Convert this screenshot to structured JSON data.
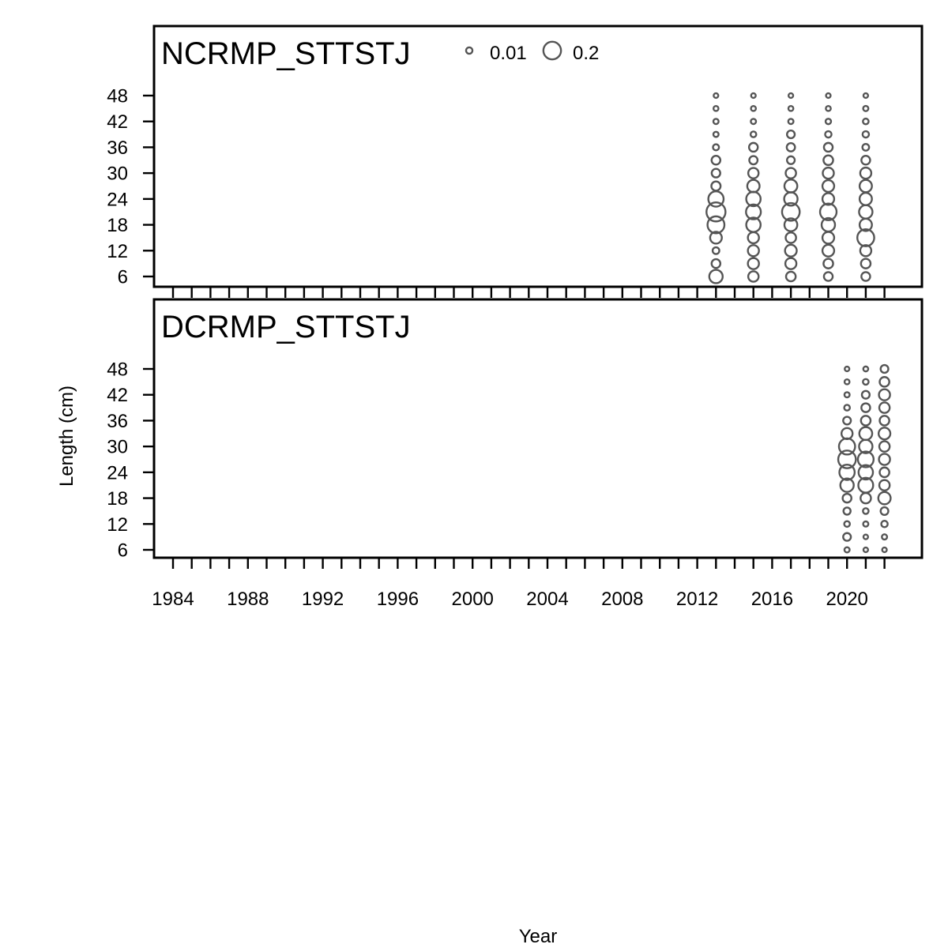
{
  "chart_data": {
    "type": "scatter",
    "subtype": "bubble",
    "xlabel": "Year",
    "ylabel": "Length (cm)",
    "xlim": [
      1983,
      2023.5
    ],
    "x_tick_labels": [
      "1984",
      "1988",
      "1992",
      "1996",
      "2000",
      "2004",
      "2008",
      "2012",
      "2016",
      "2020"
    ],
    "x_tick_values": [
      1984,
      1988,
      1992,
      1996,
      2000,
      2004,
      2008,
      2012,
      2016,
      2020
    ],
    "x_minor_step": 1,
    "y_ticks": [
      6,
      12,
      18,
      24,
      30,
      36,
      42,
      48
    ],
    "ylim": [
      4.5,
      61
    ],
    "legend": {
      "placement": "top",
      "entries": [
        {
          "label": "0.01",
          "value": 0.01
        },
        {
          "label": "0.2",
          "value": 0.2
        }
      ]
    },
    "bubble_color": "#555555",
    "panels": [
      {
        "name": "NCRMP_STTSTJ",
        "series": [
          {
            "year": 2013,
            "lengths": [
              6,
              9,
              12,
              15,
              18,
              21,
              24,
              27,
              30,
              33,
              36,
              39,
              42,
              45,
              48
            ],
            "proportions": [
              0.1,
              0.03,
              0.012,
              0.07,
              0.18,
              0.24,
              0.14,
              0.035,
              0.028,
              0.03,
              0.008,
              0.004,
              0.004,
              0.003,
              0.002
            ]
          },
          {
            "year": 2015,
            "lengths": [
              6,
              9,
              12,
              15,
              18,
              21,
              24,
              27,
              30,
              33,
              36,
              39,
              42,
              45,
              48
            ],
            "proportions": [
              0.05,
              0.06,
              0.06,
              0.06,
              0.12,
              0.13,
              0.12,
              0.08,
              0.05,
              0.025,
              0.03,
              0.006,
              0.004,
              0.003,
              0.002
            ]
          },
          {
            "year": 2017,
            "lengths": [
              6,
              9,
              12,
              15,
              18,
              21,
              24,
              27,
              30,
              33,
              36,
              39,
              42,
              45,
              48
            ],
            "proportions": [
              0.04,
              0.06,
              0.07,
              0.05,
              0.09,
              0.2,
              0.1,
              0.09,
              0.05,
              0.02,
              0.025,
              0.02,
              0.004,
              0.003,
              0.002
            ]
          },
          {
            "year": 2019,
            "lengths": [
              6,
              9,
              12,
              15,
              18,
              21,
              24,
              27,
              30,
              33,
              36,
              39,
              42,
              45,
              48
            ],
            "proportions": [
              0.03,
              0.04,
              0.07,
              0.07,
              0.1,
              0.17,
              0.07,
              0.07,
              0.06,
              0.04,
              0.03,
              0.01,
              0.005,
              0.003,
              0.002
            ]
          },
          {
            "year": 2021,
            "lengths": [
              6,
              9,
              12,
              15,
              18,
              21,
              24,
              27,
              30,
              33,
              36,
              39,
              42,
              45,
              48
            ],
            "proportions": [
              0.03,
              0.04,
              0.06,
              0.18,
              0.08,
              0.1,
              0.08,
              0.08,
              0.06,
              0.03,
              0.012,
              0.01,
              0.006,
              0.004,
              0.002
            ]
          }
        ]
      },
      {
        "name": "DCRMP_STTSTJ",
        "series": [
          {
            "year": 2020,
            "lengths": [
              6,
              9,
              12,
              15,
              18,
              21,
              24,
              27,
              30,
              33,
              36,
              39,
              42,
              45,
              48
            ],
            "proportions": [
              0.004,
              0.02,
              0.006,
              0.015,
              0.03,
              0.1,
              0.14,
              0.2,
              0.16,
              0.06,
              0.02,
              0.006,
              0.004,
              0.003,
              0.002
            ]
          },
          {
            "year": 2021,
            "lengths": [
              6,
              9,
              12,
              15,
              18,
              21,
              24,
              27,
              30,
              33,
              36,
              39,
              42,
              45,
              48
            ],
            "proportions": [
              0.002,
              0.002,
              0.004,
              0.006,
              0.05,
              0.13,
              0.12,
              0.15,
              0.1,
              0.09,
              0.04,
              0.03,
              0.02,
              0.006,
              0.003
            ]
          },
          {
            "year": 2022,
            "lengths": [
              6,
              9,
              12,
              15,
              18,
              21,
              24,
              27,
              30,
              33,
              36,
              39,
              42,
              45,
              48
            ],
            "proportions": [
              0.002,
              0.004,
              0.01,
              0.02,
              0.08,
              0.05,
              0.04,
              0.06,
              0.05,
              0.07,
              0.04,
              0.05,
              0.06,
              0.04,
              0.02
            ]
          }
        ]
      }
    ]
  }
}
